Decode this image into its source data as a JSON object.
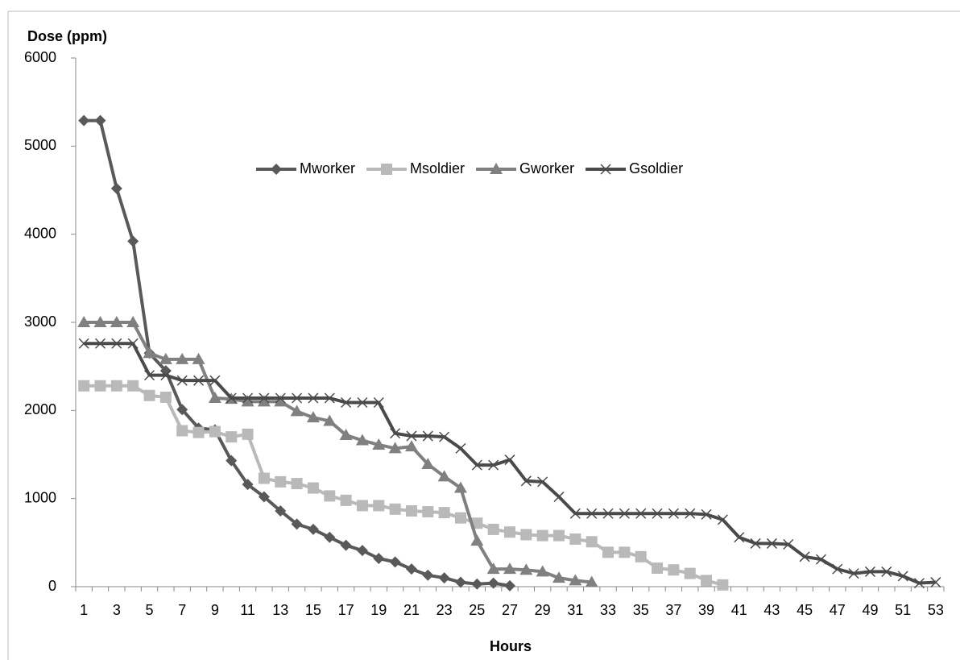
{
  "chart_data": {
    "type": "line",
    "y_label": "Dose (ppm)",
    "x_label": "Hours",
    "categories": [
      "1",
      null,
      "3",
      null,
      "5",
      null,
      "7",
      null,
      "9",
      null,
      "11",
      null,
      "13",
      null,
      "15",
      null,
      "17",
      null,
      "19",
      null,
      "21",
      null,
      "23",
      null,
      "25",
      null,
      "27",
      null,
      "29",
      null,
      "31",
      null,
      "33",
      null,
      "35",
      null,
      "37",
      null,
      "39",
      null,
      "41",
      null,
      "43",
      null,
      "45",
      null,
      "47",
      null,
      "49",
      null,
      "51",
      null,
      "53"
    ],
    "ylim": [
      0,
      6000
    ],
    "yticks": [
      0,
      1000,
      2000,
      3000,
      4000,
      5000,
      6000
    ],
    "grid": false,
    "legend": "top",
    "series": [
      {
        "name": "Mworker",
        "color": "#595959",
        "marker": "diamond",
        "values": [
          5290,
          5290,
          4520,
          3920,
          2650,
          2450,
          2010,
          1800,
          1780,
          1430,
          1160,
          1020,
          860,
          710,
          650,
          560,
          470,
          410,
          320,
          280,
          200,
          130,
          100,
          50,
          30,
          40,
          10,
          null,
          null,
          null,
          null,
          null,
          null,
          null,
          null,
          null,
          null,
          null,
          null,
          null,
          null,
          null,
          null,
          null,
          null,
          null,
          null,
          null,
          null,
          null,
          null,
          null,
          null
        ]
      },
      {
        "name": "Msoldier",
        "color": "#b9b9b9",
        "marker": "square",
        "values": [
          2280,
          2280,
          2280,
          2280,
          2170,
          2150,
          1770,
          1750,
          1760,
          1700,
          1730,
          1230,
          1190,
          1170,
          1120,
          1030,
          980,
          920,
          920,
          880,
          860,
          850,
          840,
          780,
          720,
          650,
          620,
          590,
          580,
          580,
          540,
          510,
          390,
          390,
          340,
          210,
          190,
          150,
          70,
          20,
          null,
          null,
          null,
          null,
          null,
          null,
          null,
          null,
          null,
          null,
          null,
          null,
          null
        ]
      },
      {
        "name": "Gworker",
        "color": "#808080",
        "marker": "triangle",
        "values": [
          3000,
          3000,
          3000,
          3000,
          2650,
          2580,
          2580,
          2580,
          2140,
          2130,
          2100,
          2100,
          2100,
          1990,
          1920,
          1880,
          1720,
          1660,
          1610,
          1570,
          1590,
          1390,
          1250,
          1120,
          520,
          200,
          200,
          190,
          170,
          100,
          70,
          50,
          null,
          null,
          null,
          null,
          null,
          null,
          null,
          null,
          null,
          null,
          null,
          null,
          null,
          null,
          null,
          null,
          null,
          null,
          null,
          null,
          null
        ]
      },
      {
        "name": "Gsoldier",
        "color": "#4a4a4a",
        "marker": "x",
        "values": [
          2760,
          2760,
          2760,
          2760,
          2400,
          2400,
          2340,
          2340,
          2340,
          2140,
          2140,
          2140,
          2140,
          2140,
          2140,
          2140,
          2090,
          2090,
          2090,
          1740,
          1710,
          1710,
          1700,
          1570,
          1380,
          1380,
          1440,
          1200,
          1190,
          1020,
          830,
          830,
          830,
          830,
          830,
          830,
          830,
          830,
          820,
          760,
          560,
          490,
          490,
          480,
          340,
          310,
          200,
          150,
          170,
          170,
          120,
          40,
          50
        ]
      }
    ]
  }
}
